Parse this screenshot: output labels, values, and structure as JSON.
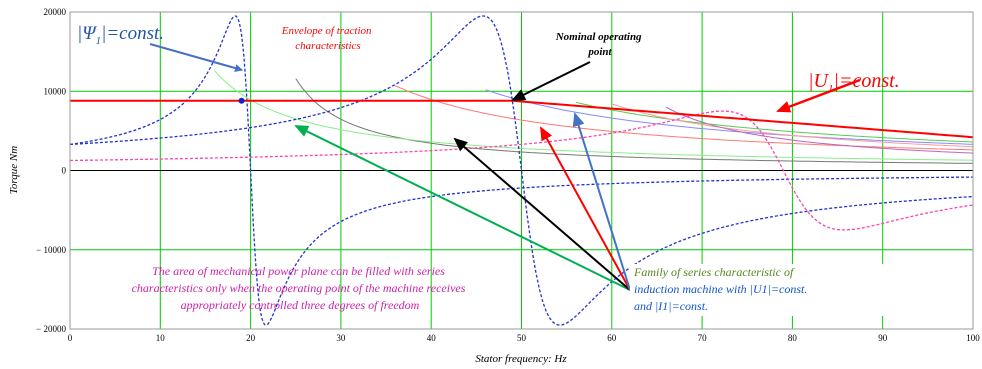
{
  "chart_data": {
    "type": "line",
    "title": "",
    "xlabel": "Stator frequency: Hz",
    "ylabel": "Torque Nm",
    "xlim": [
      0,
      100
    ],
    "ylim": [
      -20000,
      20000
    ],
    "x_ticks": [
      0,
      10,
      20,
      30,
      40,
      50,
      60,
      70,
      80,
      90,
      100
    ],
    "x_tick_labels": [
      "0",
      "10",
      "20",
      "30",
      "40",
      "50",
      "60",
      "70",
      "80",
      "90",
      "100"
    ],
    "y_ticks": [
      -20000,
      -10000,
      0,
      10000,
      20000
    ],
    "y_tick_labels": [
      "− 20000",
      "− 10000",
      "0",
      "10000",
      "20000"
    ],
    "grid": true,
    "grid_color": "#00cc00",
    "envelope": {
      "color": "#ff0000",
      "constant_torque": 8800,
      "nominal_point": [
        49,
        8800
      ],
      "end_value": [
        100,
        4200
      ]
    },
    "series_characteristics": [
      {
        "color": "#ff7777",
        "x_start": 36,
        "y_start": 10700,
        "y_end": 2600
      },
      {
        "color": "#777777",
        "x_start": 25,
        "y_start": 11600,
        "y_end": 900
      },
      {
        "color": "#88ee88",
        "x_start": 16,
        "y_start": 12600,
        "y_end": 1300
      },
      {
        "color": "#8888ff",
        "x_start": 46,
        "y_start": 10200,
        "y_end": 3300
      },
      {
        "color": "#55cc55",
        "x_start": 56,
        "y_start": 8600,
        "y_end": 3600
      },
      {
        "color": "#ff9999",
        "x_start": 60,
        "y_start": 8400,
        "y_end": 3000
      },
      {
        "color": "#bb66bb",
        "x_start": 66,
        "y_start": 8000,
        "y_end": 2200
      }
    ],
    "torque_speed_curves": [
      {
        "color": "#2233cc",
        "sync_hz": 20,
        "peak": 19500,
        "base": 4500
      },
      {
        "color": "#2233cc",
        "sync_hz": 50,
        "peak": 19500,
        "base": 1800
      },
      {
        "color": "#ff44aa",
        "sync_hz": 79,
        "peak": 7500,
        "base": 600
      }
    ],
    "annotations": {
      "psi_label": "|Ψ",
      "psi_sub": "1",
      "psi_rest": "|=const.",
      "envelope_line1": "Envelope of traction",
      "envelope_line2": "characteristics",
      "nominal_line1": "Nominal operating",
      "nominal_line2": "point",
      "u_label": "|U",
      "u_sub": "1",
      "u_rest": "|=const.",
      "area_line1": "The area of mechanical power plane can be filled with series",
      "area_line2": "characteristics only when the operating point of the machine receives",
      "area_line3": "appropriately controlled three degrees of freedom",
      "family_line1": "Family of series characteristic of",
      "family_line2a": "induction machine with |U1",
      "family_line2b": "|=const.",
      "family_line3a": "and |I1",
      "family_line3b": "|=const."
    },
    "colors": {
      "psi": "#2255aa",
      "envelope": "#ff0000",
      "nominal": "#000000",
      "u": "#ff0000",
      "area": "#cc22aa",
      "family_green": "#558822",
      "family_blue": "#1155cc",
      "arrow_blue": "#4472c4",
      "arrow_red": "#ff0000",
      "arrow_black": "#000000",
      "arrow_green": "#00b050"
    }
  }
}
